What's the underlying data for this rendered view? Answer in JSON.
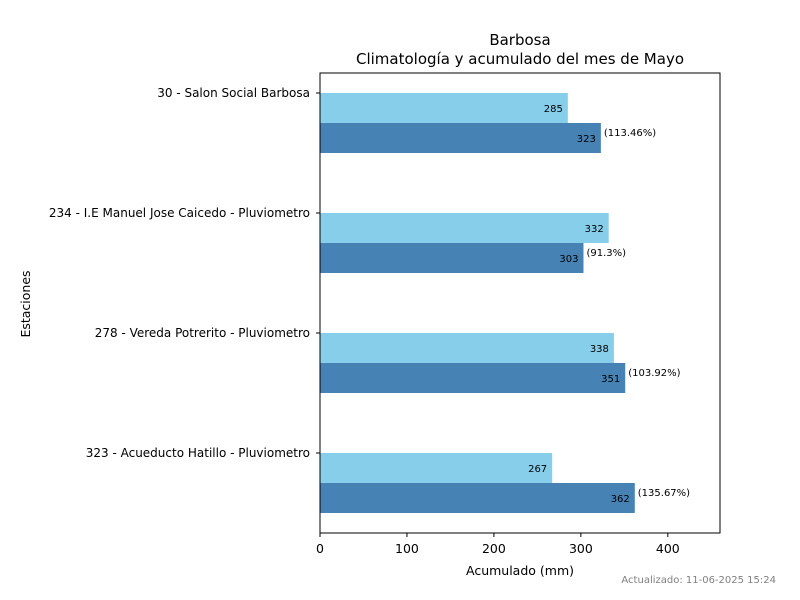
{
  "chart_data": {
    "type": "bar",
    "orientation": "horizontal",
    "title": "Barbosa",
    "subtitle": "Climatología y acumulado del mes de Mayo",
    "xlabel": "Acumulado (mm)",
    "ylabel": "Estaciones",
    "xlim": [
      0,
      460
    ],
    "xticks": [
      0,
      100,
      200,
      300,
      400
    ],
    "grid": false,
    "categories": [
      "30 - Salon Social Barbosa",
      "234 - I.E Manuel Jose Caicedo - Pluviometro",
      "278 - Vereda Potrerito - Pluviometro",
      "323 - Acueducto Hatillo - Pluviometro"
    ],
    "series": [
      {
        "values": [
          285,
          332,
          338,
          267
        ],
        "color": "#87ceeb"
      },
      {
        "values": [
          323,
          303,
          351,
          362
        ],
        "color": "#4682b4",
        "annotations": [
          "(113.46%)",
          "(91.3%)",
          "(103.92%)",
          "(135.67%)"
        ]
      }
    ]
  },
  "footer": "Actualizado: 11-06-2025 15:24"
}
